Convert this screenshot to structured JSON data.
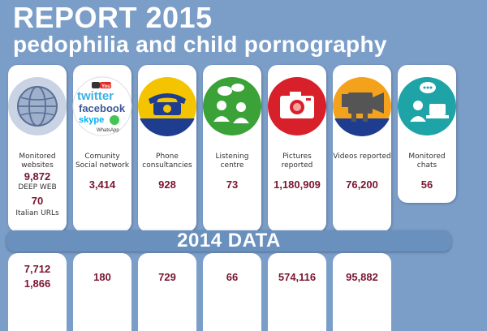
{
  "header": {
    "title": "REPORT 2015",
    "subtitle": "pedophilia and child pornography"
  },
  "band_label": "2014 DATA",
  "social_logos": {
    "youtube": "YouTube",
    "twitter": "twitter",
    "facebook": "facebook",
    "skype": "skype",
    "whatsapp": "WhatsApp"
  },
  "columns": [
    {
      "id": "websites",
      "label": "Monitored websites",
      "value": "9,872",
      "sub1": "DEEP WEB",
      "value2": "70",
      "sub2": "Italian URLs",
      "data2014": "7,712",
      "data2014b": "1,866",
      "icon": "globe-icon",
      "color": "#c9d3e3"
    },
    {
      "id": "social",
      "label": "Comunity Social network",
      "value": "3,414",
      "data2014": "180",
      "icon": "social-network-logos-icon",
      "color": "#ffffff"
    },
    {
      "id": "phone",
      "label": "Phone consultancies",
      "value": "928",
      "data2014": "729",
      "icon": "telephone-icon",
      "color": "#f5c400"
    },
    {
      "id": "listening",
      "label": "Listening centre",
      "value": "73",
      "data2014": "66",
      "icon": "listening-people-icon",
      "color": "#3aa236"
    },
    {
      "id": "pictures",
      "label": "Pictures reported",
      "value": "1,180,909",
      "data2014": "574,116",
      "icon": "camera-icon",
      "color": "#d7202a"
    },
    {
      "id": "videos",
      "label": "Videos reported",
      "value": "76,200",
      "data2014": "95,882",
      "icon": "video-camera-icon",
      "color": "#f4a21b"
    },
    {
      "id": "chats",
      "label": "Monitored chats",
      "value": "56",
      "icon": "chat-people-icon",
      "color": "#1ea3a7"
    }
  ]
}
